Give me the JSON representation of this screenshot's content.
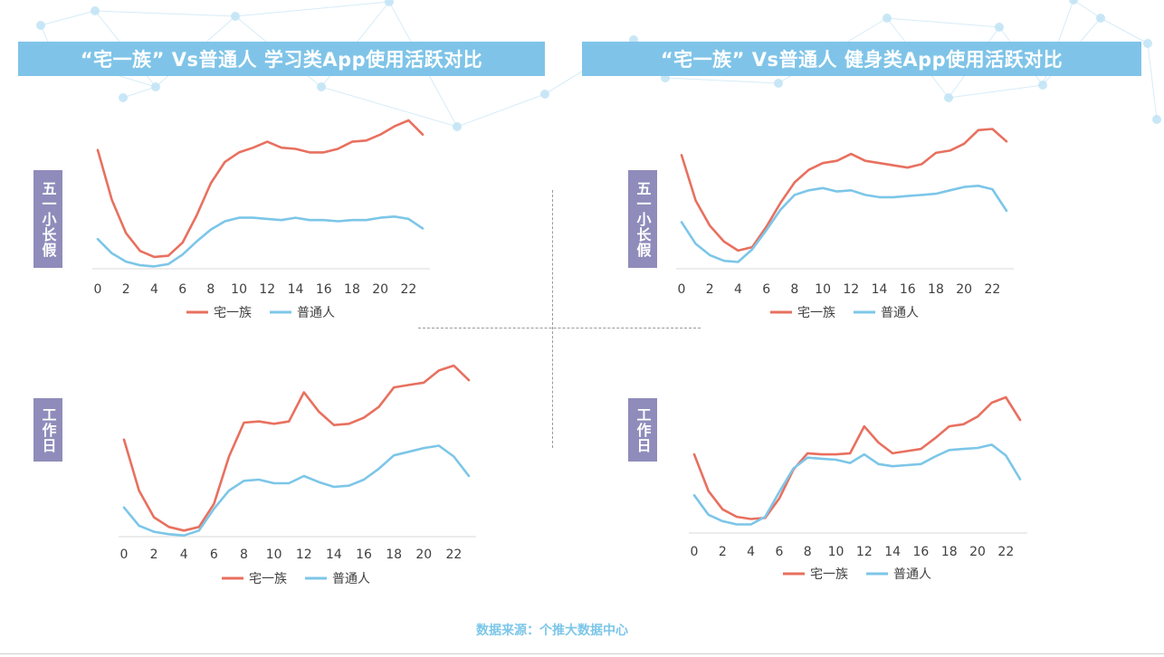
{
  "colors": {
    "title_bg": "#7fc4e8",
    "label_bg": "#8f8cbb",
    "series_zhai": "#e8705f",
    "series_normal": "#7cc6e8",
    "source_text": "#7cc6e8",
    "network_line": "#d6ecf8",
    "network_node": "#bfe3f5"
  },
  "titles": {
    "left": "“宅一族” Vs普通人  学习类App使用活跃对比",
    "right": "“宅一族” Vs普通人 健身类App使用活跃对比"
  },
  "row_labels": {
    "holiday": "五一小长假",
    "workday": "工作日"
  },
  "legend": {
    "zhai": "宅一族",
    "normal": "普通人"
  },
  "source": "数据来源：个推大数据中心",
  "chart_data": [
    {
      "id": "study-holiday",
      "type": "line",
      "x": [
        0,
        1,
        2,
        3,
        4,
        5,
        6,
        7,
        8,
        9,
        10,
        11,
        12,
        13,
        14,
        15,
        16,
        17,
        18,
        19,
        20,
        21,
        22,
        23
      ],
      "xticks": [
        "0",
        "2",
        "4",
        "6",
        "8",
        "10",
        "12",
        "14",
        "16",
        "18",
        "20",
        "22"
      ],
      "series": [
        {
          "name": "宅一族",
          "values": [
            100,
            58,
            30,
            15,
            10,
            11,
            22,
            45,
            72,
            90,
            98,
            102,
            107,
            102,
            101,
            98,
            98,
            101,
            107,
            108,
            113,
            120,
            125,
            113
          ]
        },
        {
          "name": "普通人",
          "values": [
            25,
            13,
            6,
            3,
            2,
            4,
            12,
            23,
            33,
            40,
            43,
            43,
            42,
            41,
            43,
            41,
            41,
            40,
            41,
            41,
            43,
            44,
            42,
            34
          ]
        }
      ]
    },
    {
      "id": "fitness-holiday",
      "type": "line",
      "x": [
        0,
        1,
        2,
        3,
        4,
        5,
        6,
        7,
        8,
        9,
        10,
        11,
        12,
        13,
        14,
        15,
        16,
        17,
        18,
        19,
        20,
        21,
        22,
        23
      ],
      "xticks": [
        "0",
        "2",
        "4",
        "6",
        "8",
        "10",
        "12",
        "14",
        "16",
        "18",
        "20",
        "22"
      ],
      "series": [
        {
          "name": "宅一族",
          "values": [
            100,
            60,
            38,
            24,
            16,
            19,
            37,
            58,
            76,
            87,
            93,
            95,
            101,
            95,
            93,
            91,
            89,
            92,
            102,
            104,
            110,
            122,
            123,
            112
          ]
        },
        {
          "name": "普通人",
          "values": [
            41,
            22,
            12,
            7,
            6,
            17,
            34,
            52,
            65,
            69,
            71,
            68,
            69,
            65,
            63,
            63,
            64,
            65,
            66,
            69,
            72,
            73,
            70,
            51
          ]
        }
      ]
    },
    {
      "id": "study-workday",
      "type": "line",
      "x": [
        0,
        1,
        2,
        3,
        4,
        5,
        6,
        7,
        8,
        9,
        10,
        11,
        12,
        13,
        14,
        15,
        16,
        17,
        18,
        19,
        20,
        21,
        22,
        23
      ],
      "xticks": [
        "0",
        "2",
        "4",
        "6",
        "8",
        "10",
        "12",
        "14",
        "16",
        "18",
        "20",
        "22"
      ],
      "series": [
        {
          "name": "宅一族",
          "values": [
            80,
            38,
            16,
            8,
            5,
            8,
            27,
            66,
            94,
            95,
            93,
            95,
            119,
            103,
            92,
            93,
            98,
            107,
            123,
            125,
            127,
            137,
            141,
            129
          ]
        },
        {
          "name": "普通人",
          "values": [
            24,
            9,
            4,
            2,
            1,
            5,
            23,
            38,
            46,
            47,
            44,
            44,
            50,
            45,
            41,
            42,
            47,
            56,
            67,
            70,
            73,
            75,
            66,
            50
          ]
        }
      ]
    },
    {
      "id": "fitness-workday",
      "type": "line",
      "x": [
        0,
        1,
        2,
        3,
        4,
        5,
        6,
        7,
        8,
        9,
        10,
        11,
        12,
        13,
        14,
        15,
        16,
        17,
        18,
        19,
        20,
        21,
        22,
        23
      ],
      "xticks": [
        "0",
        "2",
        "4",
        "6",
        "8",
        "10",
        "12",
        "14",
        "16",
        "18",
        "20",
        "22"
      ],
      "series": [
        {
          "name": "宅一族",
          "values": [
            73,
            39,
            22,
            15,
            13,
            14,
            32,
            59,
            74,
            73,
            73,
            74,
            99,
            84,
            74,
            76,
            78,
            88,
            99,
            101,
            108,
            121,
            126,
            105
          ]
        },
        {
          "name": "普通人",
          "values": [
            35,
            17,
            11,
            8,
            8,
            15,
            38,
            60,
            70,
            69,
            68,
            65,
            73,
            64,
            62,
            63,
            64,
            71,
            77,
            78,
            79,
            82,
            72,
            50
          ]
        }
      ]
    }
  ]
}
